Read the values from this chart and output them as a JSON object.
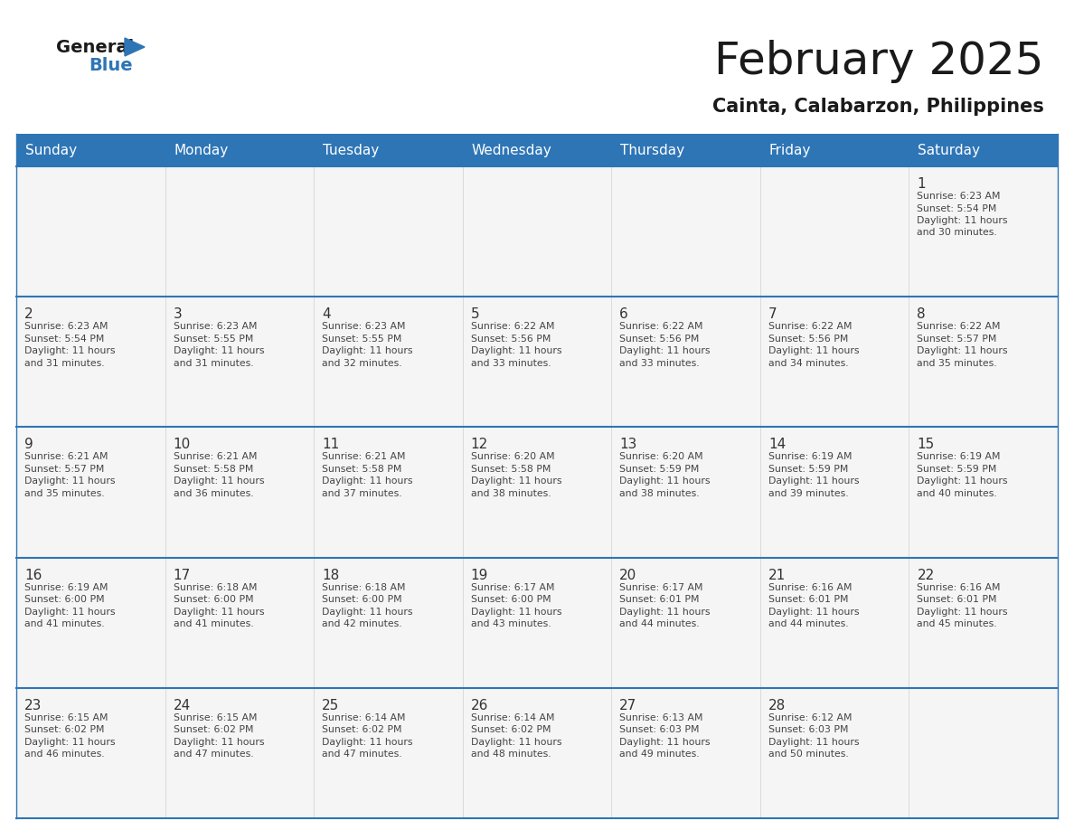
{
  "title": "February 2025",
  "subtitle": "Cainta, Calabarzon, Philippines",
  "header_bg": "#2e75b6",
  "header_text": "#ffffff",
  "cell_bg": "#f5f5f5",
  "day_headers": [
    "Sunday",
    "Monday",
    "Tuesday",
    "Wednesday",
    "Thursday",
    "Friday",
    "Saturday"
  ],
  "title_color": "#1a1a1a",
  "subtitle_color": "#1a1a1a",
  "number_color": "#333333",
  "text_color": "#444444",
  "line_color": "#2e75b6",
  "logo_general_color": "#1a1a1a",
  "logo_blue_color": "#2e75b6",
  "calendar_data": [
    [
      null,
      null,
      null,
      null,
      null,
      null,
      {
        "day": 1,
        "sunrise": "6:23 AM",
        "sunset": "5:54 PM",
        "daylight": "11 hours and 30 minutes."
      }
    ],
    [
      {
        "day": 2,
        "sunrise": "6:23 AM",
        "sunset": "5:54 PM",
        "daylight": "11 hours and 31 minutes."
      },
      {
        "day": 3,
        "sunrise": "6:23 AM",
        "sunset": "5:55 PM",
        "daylight": "11 hours and 31 minutes."
      },
      {
        "day": 4,
        "sunrise": "6:23 AM",
        "sunset": "5:55 PM",
        "daylight": "11 hours and 32 minutes."
      },
      {
        "day": 5,
        "sunrise": "6:22 AM",
        "sunset": "5:56 PM",
        "daylight": "11 hours and 33 minutes."
      },
      {
        "day": 6,
        "sunrise": "6:22 AM",
        "sunset": "5:56 PM",
        "daylight": "11 hours and 33 minutes."
      },
      {
        "day": 7,
        "sunrise": "6:22 AM",
        "sunset": "5:56 PM",
        "daylight": "11 hours and 34 minutes."
      },
      {
        "day": 8,
        "sunrise": "6:22 AM",
        "sunset": "5:57 PM",
        "daylight": "11 hours and 35 minutes."
      }
    ],
    [
      {
        "day": 9,
        "sunrise": "6:21 AM",
        "sunset": "5:57 PM",
        "daylight": "11 hours and 35 minutes."
      },
      {
        "day": 10,
        "sunrise": "6:21 AM",
        "sunset": "5:58 PM",
        "daylight": "11 hours and 36 minutes."
      },
      {
        "day": 11,
        "sunrise": "6:21 AM",
        "sunset": "5:58 PM",
        "daylight": "11 hours and 37 minutes."
      },
      {
        "day": 12,
        "sunrise": "6:20 AM",
        "sunset": "5:58 PM",
        "daylight": "11 hours and 38 minutes."
      },
      {
        "day": 13,
        "sunrise": "6:20 AM",
        "sunset": "5:59 PM",
        "daylight": "11 hours and 38 minutes."
      },
      {
        "day": 14,
        "sunrise": "6:19 AM",
        "sunset": "5:59 PM",
        "daylight": "11 hours and 39 minutes."
      },
      {
        "day": 15,
        "sunrise": "6:19 AM",
        "sunset": "5:59 PM",
        "daylight": "11 hours and 40 minutes."
      }
    ],
    [
      {
        "day": 16,
        "sunrise": "6:19 AM",
        "sunset": "6:00 PM",
        "daylight": "11 hours and 41 minutes."
      },
      {
        "day": 17,
        "sunrise": "6:18 AM",
        "sunset": "6:00 PM",
        "daylight": "11 hours and 41 minutes."
      },
      {
        "day": 18,
        "sunrise": "6:18 AM",
        "sunset": "6:00 PM",
        "daylight": "11 hours and 42 minutes."
      },
      {
        "day": 19,
        "sunrise": "6:17 AM",
        "sunset": "6:00 PM",
        "daylight": "11 hours and 43 minutes."
      },
      {
        "day": 20,
        "sunrise": "6:17 AM",
        "sunset": "6:01 PM",
        "daylight": "11 hours and 44 minutes."
      },
      {
        "day": 21,
        "sunrise": "6:16 AM",
        "sunset": "6:01 PM",
        "daylight": "11 hours and 44 minutes."
      },
      {
        "day": 22,
        "sunrise": "6:16 AM",
        "sunset": "6:01 PM",
        "daylight": "11 hours and 45 minutes."
      }
    ],
    [
      {
        "day": 23,
        "sunrise": "6:15 AM",
        "sunset": "6:02 PM",
        "daylight": "11 hours and 46 minutes."
      },
      {
        "day": 24,
        "sunrise": "6:15 AM",
        "sunset": "6:02 PM",
        "daylight": "11 hours and 47 minutes."
      },
      {
        "day": 25,
        "sunrise": "6:14 AM",
        "sunset": "6:02 PM",
        "daylight": "11 hours and 47 minutes."
      },
      {
        "day": 26,
        "sunrise": "6:14 AM",
        "sunset": "6:02 PM",
        "daylight": "11 hours and 48 minutes."
      },
      {
        "day": 27,
        "sunrise": "6:13 AM",
        "sunset": "6:03 PM",
        "daylight": "11 hours and 49 minutes."
      },
      {
        "day": 28,
        "sunrise": "6:12 AM",
        "sunset": "6:03 PM",
        "daylight": "11 hours and 50 minutes."
      },
      null
    ]
  ]
}
